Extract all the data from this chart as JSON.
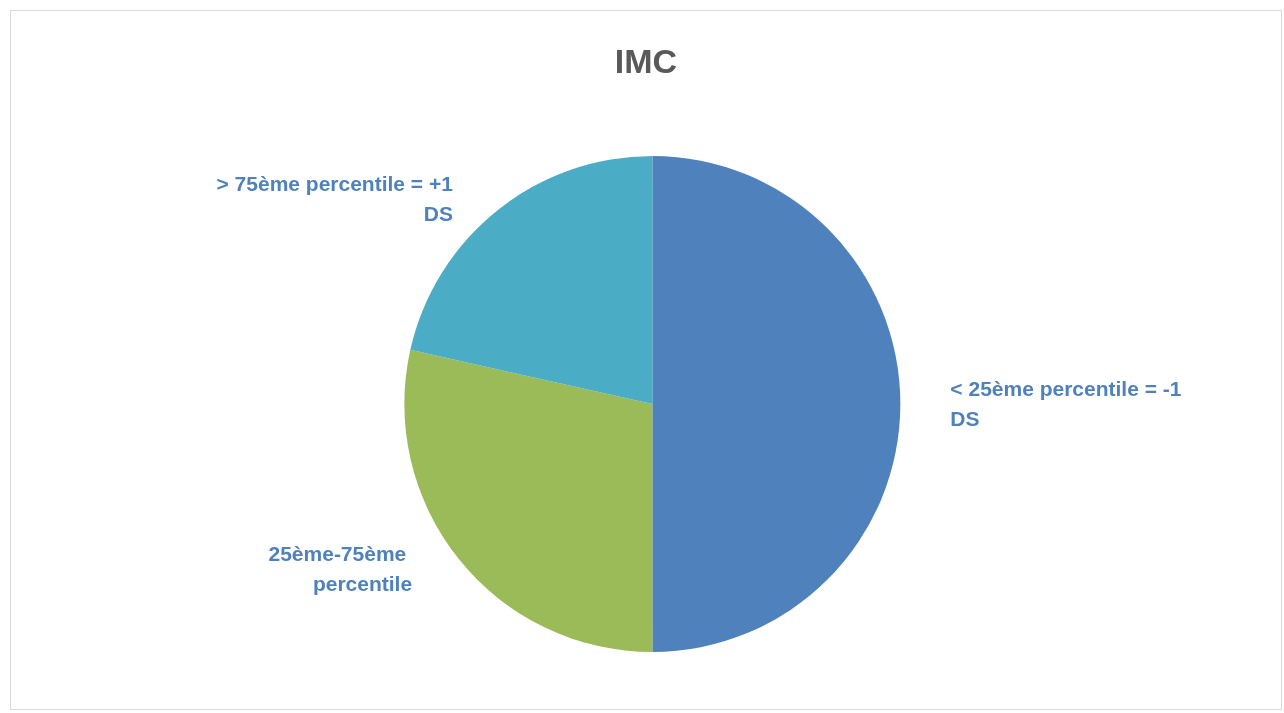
{
  "chart_data": {
    "type": "pie",
    "title": "IMC",
    "categories": [
      "< 25ème percentile = -1 DS",
      "25ème-75ème percentile",
      "> 75ème percentile = +1 DS"
    ],
    "values": [
      50,
      28.5,
      21.5
    ],
    "colors": [
      "#4f81bd",
      "#9bbb59",
      "#4bacc6"
    ],
    "legend": false
  }
}
